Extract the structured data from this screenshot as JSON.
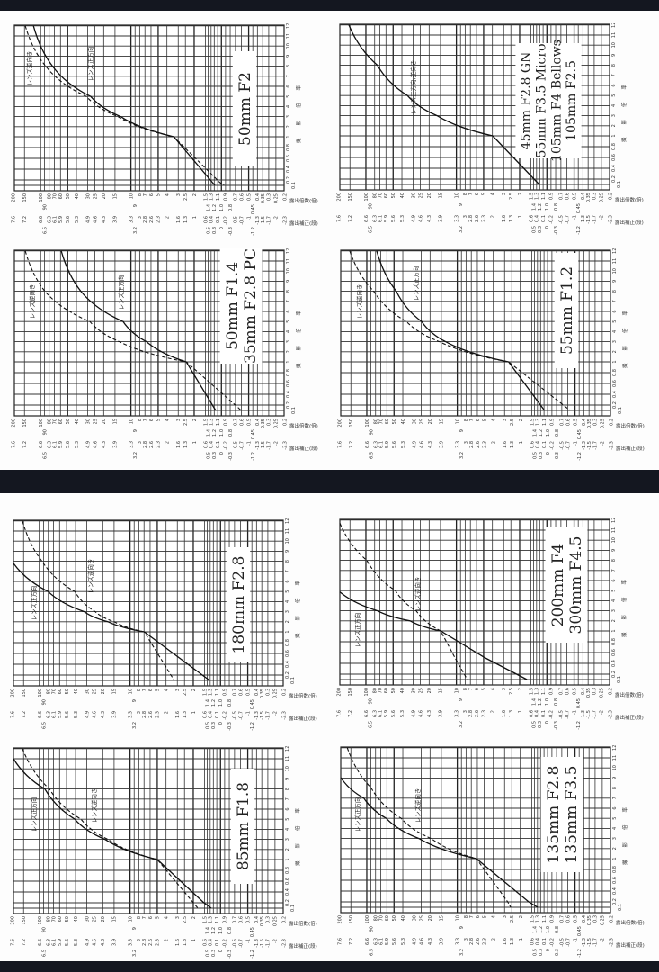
{
  "document": {
    "colors": {
      "bars": "#141720",
      "paper": "#fdfdfd",
      "ink": "#222222"
    },
    "axes": {
      "magnification_title": "撮影倍率",
      "factor_row_title": "露出倍数(倍)",
      "stops_row_title": "露出補正(段)",
      "magnification_ticks": [
        "0.1",
        "0.2",
        "0.4",
        "0.6",
        "0.8",
        "1",
        "2",
        "3",
        "4",
        "5",
        "6",
        "7",
        "8",
        "9",
        "10",
        "11",
        "12"
      ],
      "factor_ticks": [
        "200",
        "150",
        "100",
        "90",
        "80",
        "70",
        "60",
        "50",
        "40",
        "30",
        "25",
        "20",
        "15",
        "10",
        "9",
        "8",
        "7",
        "6",
        "5",
        "4",
        "3",
        "2.5",
        "2",
        "1.5",
        "1.4",
        "1.3",
        "1.2",
        "1.1",
        "1.0",
        "0.9",
        "0.8",
        "0.7",
        "0.6",
        "0.5",
        "0.45",
        "0.4",
        "0.35",
        "0.3",
        "0.25",
        "0.2"
      ],
      "stop_ticks": [
        "7.6",
        "7.2",
        "6.6",
        "6.5",
        "6.3",
        "6.1",
        "5.9",
        "5.6",
        "5.3",
        "4.9",
        "4.6",
        "4.3",
        "3.9",
        "3.3",
        "3.2",
        "3",
        "2.8",
        "2.6",
        "2.3",
        "2",
        "1.6",
        "1.3",
        "1",
        "0.6",
        "0.5",
        "0.4",
        "0.3",
        "0.1",
        "0",
        "-0.2",
        "-0.3",
        "-0.5",
        "-0.7",
        "-1",
        "-1.2",
        "-1.3",
        "-1.5",
        "-1.7",
        "-2",
        "-2.3"
      ]
    }
  },
  "chart_data": [
    {
      "type": "line",
      "title_lines": [
        "50mm F2"
      ],
      "xlabel": "露出補正(段)",
      "ylabel": "撮影倍率",
      "series": [
        {
          "name": "レンズ正方向",
          "style": "solid",
          "points": [
            [
              12,
              6.9
            ],
            [
              8,
              6.2
            ],
            [
              5,
              4.8
            ],
            [
              3,
              3.7
            ],
            [
              1,
              1.75
            ],
            [
              0.1,
              0.24
            ]
          ]
        },
        {
          "name": "レンズ逆向き",
          "style": "dashed",
          "points": [
            [
              12,
              7.2
            ],
            [
              8,
              6.45
            ],
            [
              5,
              4.96
            ],
            [
              3,
              3.8
            ],
            [
              1,
              1.75
            ],
            [
              0.15,
              0.05
            ],
            [
              0.1,
              -0.1
            ]
          ]
        }
      ]
    },
    {
      "type": "line",
      "title_lines": [
        "45mm F2.8 GN",
        "55mm F3.5 Micro",
        "105mm F4 Bellows",
        "105mm F2.5"
      ],
      "xlabel": "露出補正(段)",
      "ylabel": "撮影倍率",
      "series": [
        {
          "name": "レンズ正方向,逆向き",
          "style": "solid",
          "points": [
            [
              12,
              7.27
            ],
            [
              8,
              6.22
            ],
            [
              5,
              5.12
            ],
            [
              3,
              4.03
            ],
            [
              1,
              1.99
            ],
            [
              0.1,
              0.28
            ]
          ]
        }
      ]
    },
    {
      "type": "line",
      "title_lines": [
        "50mm F1.4",
        "35mm F2.8 PC"
      ],
      "xlabel": "露出補正(段)",
      "ylabel": "撮影倍率",
      "series": [
        {
          "name": "レンズ正方向",
          "style": "solid",
          "points": [
            [
              12,
              5.88
            ],
            [
              8,
              5.16
            ],
            [
              5,
              3.61
            ],
            [
              3,
              2.75
            ],
            [
              1,
              1.29
            ],
            [
              0.1,
              0.21
            ]
          ]
        },
        {
          "name": "レンズ逆向き",
          "style": "dashed",
          "points": [
            [
              12,
              7.2
            ],
            [
              8,
              6.48
            ],
            [
              5,
              4.83
            ],
            [
              3,
              3.74
            ],
            [
              1,
              1.29
            ],
            [
              0.15,
              -0.62
            ],
            [
              0.1,
              -0.72
            ]
          ]
        }
      ]
    },
    {
      "type": "line",
      "title_lines": [
        "55mm F1.2"
      ],
      "xlabel": "露出補正(段)",
      "ylabel": "撮影倍率",
      "series": [
        {
          "name": "レンズ正方向",
          "style": "solid",
          "points": [
            [
              12,
              6.28
            ],
            [
              8,
              5.56
            ],
            [
              5,
              4.63
            ],
            [
              3,
              3.75
            ],
            [
              1,
              1.44
            ],
            [
              0.1,
              0.12
            ]
          ]
        },
        {
          "name": "レンズ逆向き",
          "style": "dashed",
          "points": [
            [
              12,
              7.27
            ],
            [
              8,
              6.39
            ],
            [
              5,
              5.19
            ],
            [
              3,
              3.97
            ],
            [
              1,
              1.44
            ],
            [
              0.1,
              -0.82
            ]
          ]
        }
      ]
    },
    {
      "type": "line",
      "title_lines": [
        "180mm F2.8"
      ],
      "xlabel": "露出補正(段)",
      "ylabel": "撮影倍率",
      "series": [
        {
          "name": "レンズ正方向",
          "style": "solid",
          "points": [
            [
              7.8,
              7.6
            ],
            [
              5,
              6.33
            ],
            [
              3,
              5.0
            ],
            [
              2,
              4.13
            ],
            [
              1,
              2.8
            ],
            [
              0.1,
              0.4
            ]
          ]
        },
        {
          "name": "レンズ逆向き",
          "style": "dashed",
          "points": [
            [
              12,
              7.27
            ],
            [
              8,
              6.55
            ],
            [
              5,
              5.35
            ],
            [
              3,
              4.6
            ],
            [
              2,
              3.9
            ],
            [
              1,
              2.8
            ],
            [
              0.15,
              1.76
            ],
            [
              0.1,
              1.72
            ]
          ]
        }
      ]
    },
    {
      "type": "line",
      "title_lines": [
        "200mm F4",
        "300mm F4.5"
      ],
      "xlabel": "露出補正(段)",
      "ylabel": "撮影倍率",
      "series": [
        {
          "name": "レンズ正方向",
          "style": "solid",
          "points": [
            [
              4.87,
              7.6
            ],
            [
              3,
              6.22
            ],
            [
              2,
              5.02
            ],
            [
              1,
              3.9
            ],
            [
              0.5,
              2.26
            ],
            [
              0.1,
              0.73
            ]
          ]
        },
        {
          "name": "レンズ逆向き",
          "style": "dashed",
          "points": [
            [
              11.7,
              7.6
            ],
            [
              8,
              6.61
            ],
            [
              5,
              5.56
            ],
            [
              3,
              4.8
            ],
            [
              1,
              3.9
            ],
            [
              0.5,
              3.37
            ],
            [
              0.1,
              2.92
            ]
          ]
        }
      ]
    },
    {
      "type": "line",
      "title_lines": [
        "85mm F1.8"
      ],
      "xlabel": "露出補正(段)",
      "ylabel": "撮影倍率",
      "series": [
        {
          "name": "レンズ正方向",
          "style": "solid",
          "points": [
            [
              11,
              7.6
            ],
            [
              8,
              6.45
            ],
            [
              5,
              5.35
            ],
            [
              3,
              4.24
            ],
            [
              1,
              2.32
            ],
            [
              0.2,
              0.61
            ],
            [
              0.1,
              0.34
            ]
          ]
        },
        {
          "name": "レンズ逆向き",
          "style": "dashed",
          "points": [
            [
              12,
              7.27
            ],
            [
              8,
              6.28
            ],
            [
              5,
              5.12
            ],
            [
              3,
              4.13
            ],
            [
              1,
              2.32
            ],
            [
              0.1,
              0.83
            ]
          ]
        }
      ]
    },
    {
      "type": "line",
      "title_lines": [
        "135mm F2.8",
        "135mm F3.5"
      ],
      "xlabel": "露出補正(段)",
      "ylabel": "撮影倍率",
      "series": [
        {
          "name": "レンズ正方向",
          "style": "solid",
          "points": [
            [
              9.05,
              7.6
            ],
            [
              7,
              6.75
            ],
            [
              5,
              5.93
            ],
            [
              3,
              4.73
            ],
            [
              1,
              2.62
            ],
            [
              0.2,
              0.7
            ],
            [
              0.1,
              0.37
            ]
          ]
        },
        {
          "name": "レンズ逆向き",
          "style": "dashed",
          "points": [
            [
              12,
              7.36
            ],
            [
              8,
              6.48
            ],
            [
              5,
              5.38
            ],
            [
              3,
              4.28
            ],
            [
              1,
              2.62
            ],
            [
              0.2,
              1.47
            ],
            [
              0.1,
              1.36
            ]
          ]
        }
      ]
    }
  ]
}
